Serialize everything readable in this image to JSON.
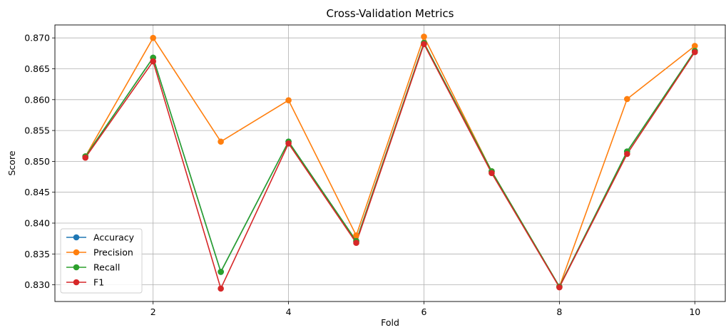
{
  "chart_data": {
    "type": "line",
    "title": "Cross-Validation Metrics",
    "xlabel": "Fold",
    "ylabel": "Score",
    "x": [
      1,
      2,
      3,
      4,
      5,
      6,
      7,
      8,
      9,
      10
    ],
    "xlim": [
      0.55,
      10.45
    ],
    "ylim": [
      0.8273,
      0.8721
    ],
    "xticks": [
      2,
      4,
      6,
      8,
      10
    ],
    "xtick_labels": [
      "2",
      "4",
      "6",
      "8",
      "10"
    ],
    "yticks": [
      0.83,
      0.835,
      0.84,
      0.845,
      0.85,
      0.855,
      0.86,
      0.865,
      0.87
    ],
    "ytick_labels": [
      "0.830",
      "0.835",
      "0.840",
      "0.845",
      "0.850",
      "0.855",
      "0.860",
      "0.865",
      "0.870"
    ],
    "grid": true,
    "legend_position": "lower-left",
    "series": [
      {
        "name": "Accuracy",
        "color": "#1f77b4",
        "values": [
          0.8508,
          0.8668,
          0.8321,
          0.8532,
          0.8371,
          0.8692,
          0.8484,
          0.8297,
          0.8516,
          0.8679
        ]
      },
      {
        "name": "Precision",
        "color": "#ff7f0e",
        "values": [
          0.8508,
          0.87,
          0.8532,
          0.8599,
          0.838,
          0.8702,
          0.8484,
          0.8297,
          0.8601,
          0.8687
        ]
      },
      {
        "name": "Recall",
        "color": "#2ca02c",
        "values": [
          0.8508,
          0.8668,
          0.8321,
          0.8532,
          0.8371,
          0.8692,
          0.8484,
          0.8297,
          0.8516,
          0.8679
        ]
      },
      {
        "name": "F1",
        "color": "#d62728",
        "values": [
          0.8506,
          0.8662,
          0.8294,
          0.8529,
          0.8368,
          0.869,
          0.8481,
          0.8296,
          0.8512,
          0.8677
        ]
      }
    ]
  }
}
